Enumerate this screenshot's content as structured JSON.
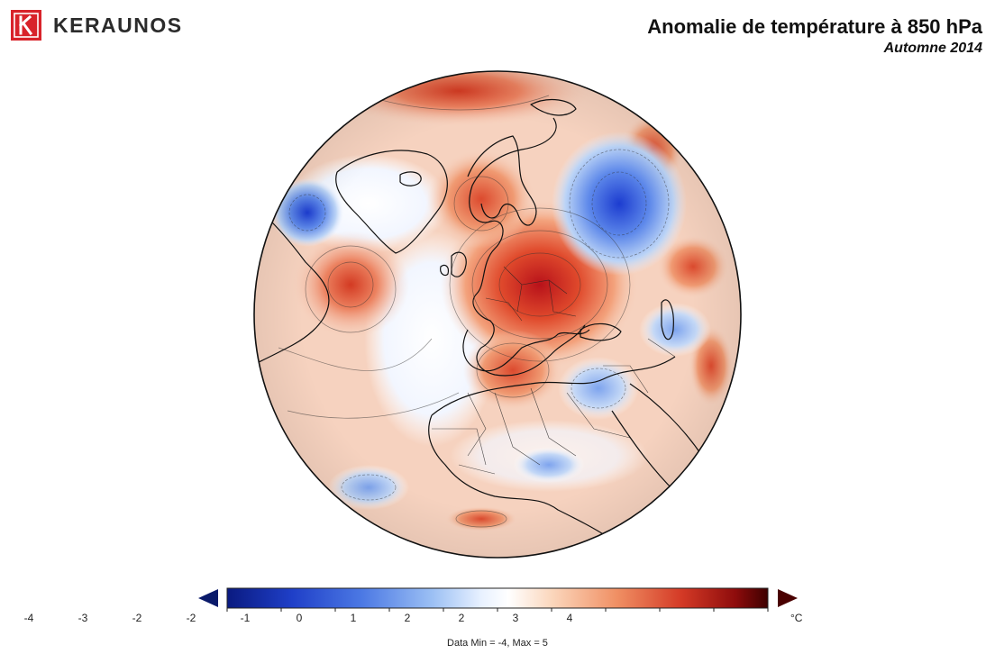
{
  "brand": {
    "name": "KERAUNOS",
    "accent": "#d8232a"
  },
  "title": {
    "main": "Anomalie de température à 850 hPa",
    "subtitle": "Automne 2014"
  },
  "map": {
    "projection": "orthographic",
    "region": "Europe / North Atlantic / North Africa",
    "field": "temperature anomaly",
    "ocean_base_color": "#f6d2bf"
  },
  "colorbar": {
    "tick_labels": [
      "-4",
      "-3",
      "-2",
      "-2",
      "-1",
      "0",
      "1",
      "2",
      "2",
      "3",
      "4"
    ],
    "unit": "°C",
    "colors": [
      "#0a1a80",
      "#2450d6",
      "#6d97ee",
      "#b8d4fa",
      "#ffffff",
      "#fbd3b8",
      "#f0936a",
      "#d8422b",
      "#8a0a0a",
      "#400000"
    ],
    "low_arrow_color": "#0a1a6a",
    "high_arrow_color": "#4a0000"
  },
  "data_range_text": "Data Min = -4, Max = 5"
}
